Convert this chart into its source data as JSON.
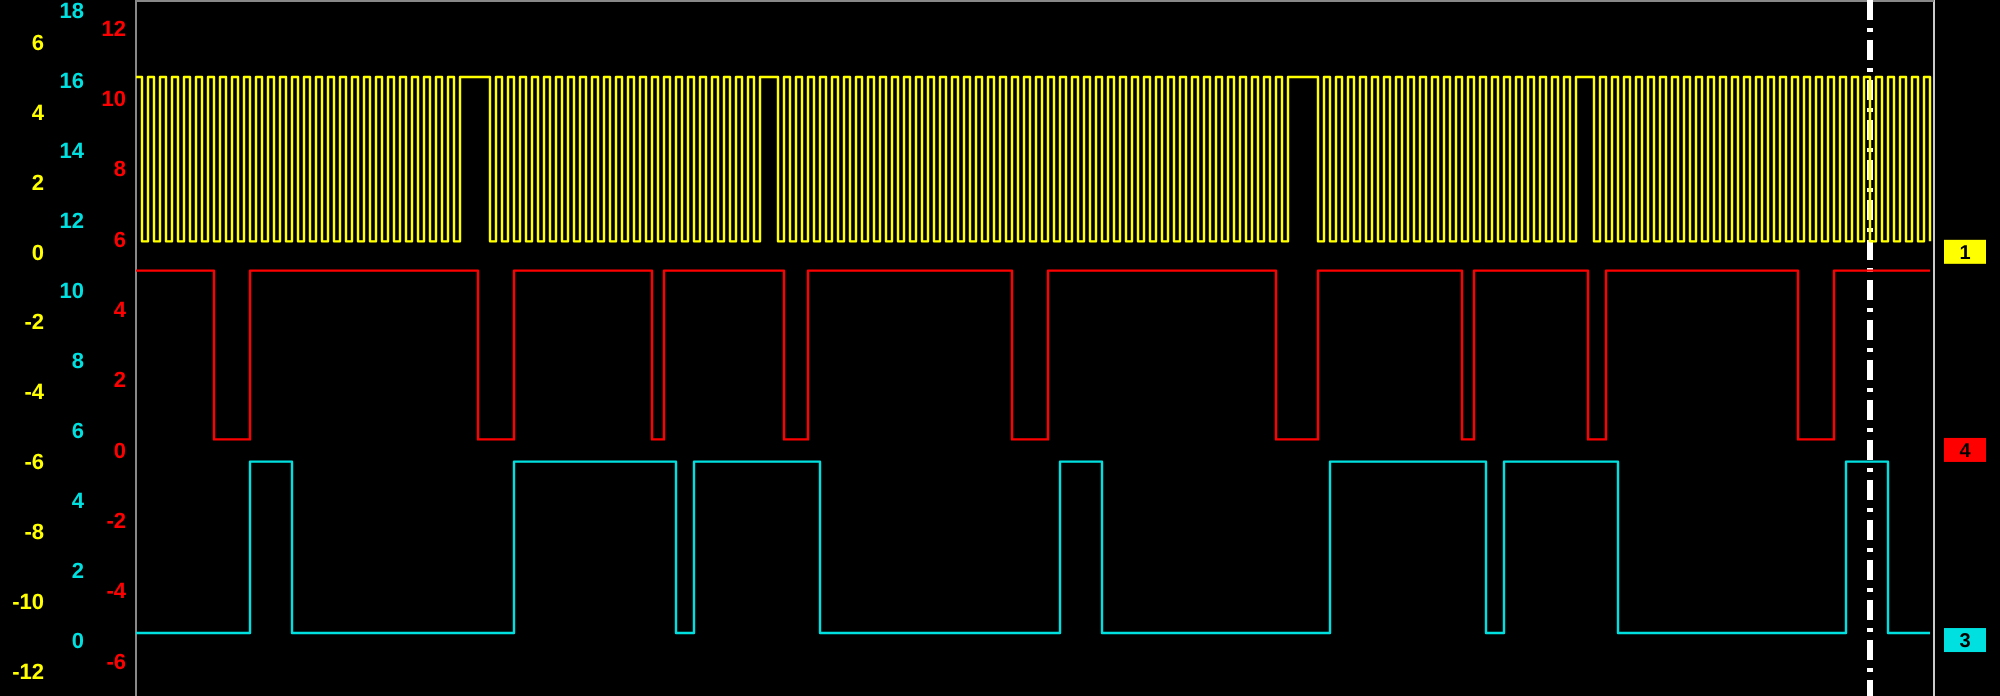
{
  "chart_data": {
    "type": "step",
    "legend": false,
    "grid": false,
    "tick_labels": "y",
    "categories": [
      null,
      null,
      null,
      null,
      null,
      null,
      null,
      null,
      null,
      null,
      null,
      null,
      null,
      null,
      null,
      null,
      null,
      null,
      null,
      null,
      null,
      null,
      null,
      null,
      null,
      null,
      null,
      null,
      null,
      null,
      null,
      null,
      null,
      null,
      null,
      null,
      null,
      null,
      null,
      null,
      null,
      null,
      null,
      null,
      null,
      null,
      null,
      null,
      null,
      null,
      null,
      null,
      null,
      null,
      null,
      null,
      null,
      null,
      null,
      null,
      null,
      null,
      null,
      null,
      null,
      null,
      null,
      null,
      null,
      null,
      null,
      null,
      null,
      null,
      null,
      null,
      null,
      null,
      null,
      null,
      null,
      null,
      null,
      null,
      null,
      null,
      null,
      null,
      null,
      null,
      null,
      null,
      null,
      null,
      null,
      null,
      null,
      null,
      null,
      null,
      null,
      null,
      null,
      null,
      null,
      null,
      null,
      null,
      null,
      null,
      null,
      null,
      null,
      null,
      null,
      null,
      null,
      null,
      null,
      null,
      null,
      null,
      null,
      null,
      null,
      null,
      null,
      null,
      null,
      null,
      null,
      null,
      null,
      null,
      null,
      null,
      null,
      null,
      null,
      null,
      null,
      null,
      null,
      null,
      null,
      null,
      null,
      null,
      null,
      null,
      null,
      null,
      null,
      null,
      null,
      null,
      null,
      null,
      null,
      null,
      null,
      null,
      null,
      null,
      null,
      null,
      null,
      null,
      null,
      null,
      null,
      null,
      null,
      null,
      null,
      null,
      null,
      null,
      null,
      null,
      null,
      null,
      null,
      null,
      null,
      null,
      null,
      null,
      null,
      null,
      null,
      null,
      null,
      null,
      null,
      null,
      null,
      null,
      null,
      null,
      null,
      null,
      null,
      null,
      null,
      null,
      null,
      null,
      null,
      null,
      null,
      null,
      null,
      null,
      null,
      null,
      null,
      null,
      null,
      null,
      null,
      null,
      null,
      null,
      null,
      null,
      null,
      null,
      null,
      null,
      null,
      null,
      null,
      null,
      null,
      null,
      null,
      null,
      null,
      null,
      null,
      null,
      null,
      null,
      null,
      null,
      null,
      null,
      null,
      null,
      null,
      null,
      null,
      null,
      null,
      null,
      null,
      null,
      null,
      null,
      null,
      null,
      null,
      null,
      null,
      null,
      null,
      null,
      null,
      null,
      null,
      null,
      null,
      null,
      null,
      null,
      null,
      null,
      null,
      null,
      null,
      null,
      null,
      null,
      null,
      null,
      null,
      null,
      null,
      null,
      null,
      null,
      null,
      null,
      null,
      null,
      null,
      null,
      null,
      null
    ],
    "ylim": [
      -12.7,
      7.2
    ],
    "yticks": [
      6,
      4,
      2,
      0,
      -2,
      -4,
      -6,
      -8,
      -10,
      -12
    ],
    "y2lim": [
      -1.6,
      18.3
    ],
    "y2ticks": [
      18,
      16,
      14,
      12,
      10,
      8,
      6,
      4,
      2,
      0
    ],
    "y3lim": [
      -7.0,
      12.8
    ],
    "y3ticks": [
      12,
      10,
      8,
      6,
      4,
      2,
      0,
      -2,
      -4,
      -6
    ],
    "series": [
      {
        "name": "1",
        "color": "#ffff00",
        "axis": "y",
        "values": [
          5,
          0.3,
          5,
          0.3,
          5,
          0.3,
          5,
          0.3,
          5,
          0.3,
          5,
          0.3,
          5,
          0.3,
          5,
          0.3,
          5,
          0.3,
          5,
          0.3,
          5,
          0.3,
          5,
          0.3,
          5,
          0.3,
          5,
          0.3,
          5,
          0.3,
          5,
          0.3,
          5,
          0.3,
          5,
          0.3,
          5,
          0.3,
          5,
          0.3,
          5,
          0.3,
          5,
          0.3,
          5,
          0.3,
          5,
          0.3,
          5,
          0.3,
          5,
          0.3,
          5,
          0.3,
          5,
          5,
          5,
          5,
          5,
          0.3,
          5,
          0.3,
          5,
          0.3,
          5,
          0.3,
          5,
          0.3,
          5,
          0.3,
          5,
          0.3,
          5,
          0.3,
          5,
          0.3,
          5,
          0.3,
          5,
          0.3,
          5,
          0.3,
          5,
          0.3,
          5,
          0.3,
          5,
          0.3,
          5,
          0.3,
          5,
          0.3,
          5,
          0.3,
          5,
          0.3,
          5,
          0.3,
          5,
          0.3,
          5,
          0.3,
          5,
          0.3,
          5,
          5,
          5,
          0.3,
          5,
          0.3,
          5,
          0.3,
          5,
          0.3,
          5,
          0.3,
          5,
          0.3,
          5,
          0.3,
          5,
          0.3,
          5,
          0.3,
          5,
          0.3,
          5,
          0.3,
          5,
          0.3,
          5,
          0.3,
          5,
          0.3,
          5,
          0.3,
          5,
          0.3,
          5,
          0.3,
          5,
          0.3,
          5,
          0.3,
          5,
          0.3,
          5,
          0.3,
          5,
          0.3,
          5,
          0.3,
          5,
          0.3,
          5,
          0.3,
          5,
          0.3,
          5,
          0.3,
          5,
          0.3,
          5,
          0.3,
          5,
          0.3,
          5,
          0.3,
          5,
          0.3,
          5,
          0.3,
          5,
          0.3,
          5,
          0.3,
          5,
          0.3,
          5,
          0.3,
          5,
          0.3,
          5,
          0.3,
          5,
          0.3,
          5,
          0.3,
          5,
          0.3,
          5,
          0.3,
          5,
          5,
          5,
          5,
          5,
          0.3,
          5,
          0.3,
          5,
          0.3,
          5,
          0.3,
          5,
          0.3,
          5,
          0.3,
          5,
          0.3,
          5,
          0.3,
          5,
          0.3,
          5,
          0.3,
          5,
          0.3,
          5,
          0.3,
          5,
          0.3,
          5,
          0.3,
          5,
          0.3,
          5,
          0.3,
          5,
          0.3,
          5,
          0.3,
          5,
          0.3,
          5,
          0.3,
          5,
          0.3,
          5,
          0.3,
          5,
          5,
          5,
          0.3,
          5,
          0.3,
          5,
          0.3,
          5,
          0.3,
          5,
          0.3,
          5,
          0.3,
          5,
          0.3,
          5,
          0.3,
          5,
          0.3,
          5,
          0.3,
          5,
          0.3,
          5,
          0.3,
          5,
          0.3,
          5,
          0.3,
          5,
          0.3,
          5,
          0.3,
          5,
          0.3,
          5,
          0.3,
          5,
          0.3,
          5,
          0.3,
          5,
          0.3,
          5,
          0.3,
          5,
          0.3,
          5,
          0.3,
          5,
          0.3,
          5,
          0.3,
          5,
          0.3,
          5,
          0.3,
          5,
          0.3
        ]
      },
      {
        "name": "4",
        "color": "#ff0000",
        "axis": "y3",
        "values": [
          5.1,
          5.1,
          5.1,
          5.1,
          5.1,
          5.1,
          5.1,
          5.1,
          5.1,
          5.1,
          5.1,
          5.1,
          5.1,
          0.3,
          0.3,
          0.3,
          0.3,
          0.3,
          0.3,
          5.1,
          5.1,
          5.1,
          5.1,
          5.1,
          5.1,
          5.1,
          5.1,
          5.1,
          5.1,
          5.1,
          5.1,
          5.1,
          5.1,
          5.1,
          5.1,
          5.1,
          5.1,
          5.1,
          5.1,
          5.1,
          5.1,
          5.1,
          5.1,
          5.1,
          5.1,
          5.1,
          5.1,
          5.1,
          5.1,
          5.1,
          5.1,
          5.1,
          5.1,
          5.1,
          5.1,
          5.1,
          5.1,
          0.3,
          0.3,
          0.3,
          0.3,
          0.3,
          0.3,
          5.1,
          5.1,
          5.1,
          5.1,
          5.1,
          5.1,
          5.1,
          5.1,
          5.1,
          5.1,
          5.1,
          5.1,
          5.1,
          5.1,
          5.1,
          5.1,
          5.1,
          5.1,
          5.1,
          5.1,
          5.1,
          5.1,
          5.1,
          0.3,
          0.3,
          5.1,
          5.1,
          5.1,
          5.1,
          5.1,
          5.1,
          5.1,
          5.1,
          5.1,
          5.1,
          5.1,
          5.1,
          5.1,
          5.1,
          5.1,
          5.1,
          5.1,
          5.1,
          5.1,
          5.1,
          0.3,
          0.3,
          0.3,
          0.3,
          5.1,
          5.1,
          5.1,
          5.1,
          5.1,
          5.1,
          5.1,
          5.1,
          5.1,
          5.1,
          5.1,
          5.1,
          5.1,
          5.1,
          5.1,
          5.1,
          5.1,
          5.1,
          5.1,
          5.1,
          5.1,
          5.1,
          5.1,
          5.1,
          5.1,
          5.1,
          5.1,
          5.1,
          5.1,
          5.1,
          5.1,
          5.1,
          5.1,
          5.1,
          0.3,
          0.3,
          0.3,
          0.3,
          0.3,
          0.3,
          5.1,
          5.1,
          5.1,
          5.1,
          5.1,
          5.1,
          5.1,
          5.1,
          5.1,
          5.1,
          5.1,
          5.1,
          5.1,
          5.1,
          5.1,
          5.1,
          5.1,
          5.1,
          5.1,
          5.1,
          5.1,
          5.1,
          5.1,
          5.1,
          5.1,
          5.1,
          5.1,
          5.1,
          5.1,
          5.1,
          5.1,
          5.1,
          5.1,
          5.1,
          5.1,
          5.1,
          5.1,
          5.1,
          0.3,
          0.3,
          0.3,
          0.3,
          0.3,
          0.3,
          0.3,
          5.1,
          5.1,
          5.1,
          5.1,
          5.1,
          5.1,
          5.1,
          5.1,
          5.1,
          5.1,
          5.1,
          5.1,
          5.1,
          5.1,
          5.1,
          5.1,
          5.1,
          5.1,
          5.1,
          5.1,
          5.1,
          5.1,
          5.1,
          5.1,
          0.3,
          0.3,
          5.1,
          5.1,
          5.1,
          5.1,
          5.1,
          5.1,
          5.1,
          5.1,
          5.1,
          5.1,
          5.1,
          5.1,
          5.1,
          5.1,
          5.1,
          5.1,
          5.1,
          5.1,
          5.1,
          0.3,
          0.3,
          0.3,
          5.1,
          5.1,
          5.1,
          5.1,
          5.1,
          5.1,
          5.1,
          5.1,
          5.1,
          5.1,
          5.1,
          5.1,
          5.1,
          5.1,
          5.1,
          5.1,
          5.1,
          5.1,
          5.1,
          5.1,
          5.1,
          5.1,
          5.1,
          5.1,
          5.1,
          5.1,
          5.1,
          5.1,
          5.1,
          5.1,
          5.1,
          5.1,
          0.3,
          0.3,
          0.3,
          0.3,
          0.3,
          0.3,
          5.1,
          5.1,
          5.1,
          5.1,
          5.1,
          5.1,
          5.1,
          5.1,
          5.1,
          5.1,
          5.1,
          5.1,
          5.1,
          5.1,
          5.1,
          5.1,
          5.1
        ]
      },
      {
        "name": "3",
        "color": "#00e0e0",
        "axis": "y2",
        "values": [
          0.2,
          0.2,
          0.2,
          0.2,
          0.2,
          0.2,
          0.2,
          0.2,
          0.2,
          0.2,
          0.2,
          0.2,
          0.2,
          0.2,
          0.2,
          0.2,
          0.2,
          0.2,
          0.2,
          5.1,
          5.1,
          5.1,
          5.1,
          5.1,
          5.1,
          5.1,
          0.2,
          0.2,
          0.2,
          0.2,
          0.2,
          0.2,
          0.2,
          0.2,
          0.2,
          0.2,
          0.2,
          0.2,
          0.2,
          0.2,
          0.2,
          0.2,
          0.2,
          0.2,
          0.2,
          0.2,
          0.2,
          0.2,
          0.2,
          0.2,
          0.2,
          0.2,
          0.2,
          0.2,
          0.2,
          0.2,
          0.2,
          0.2,
          0.2,
          0.2,
          0.2,
          0.2,
          0.2,
          5.1,
          5.1,
          5.1,
          5.1,
          5.1,
          5.1,
          5.1,
          5.1,
          5.1,
          5.1,
          5.1,
          5.1,
          5.1,
          5.1,
          5.1,
          5.1,
          5.1,
          5.1,
          5.1,
          5.1,
          5.1,
          5.1,
          5.1,
          5.1,
          5.1,
          5.1,
          5.1,
          0.2,
          0.2,
          0.2,
          5.1,
          5.1,
          5.1,
          5.1,
          5.1,
          5.1,
          5.1,
          5.1,
          5.1,
          5.1,
          5.1,
          5.1,
          5.1,
          5.1,
          5.1,
          5.1,
          5.1,
          5.1,
          5.1,
          5.1,
          5.1,
          0.2,
          0.2,
          0.2,
          0.2,
          0.2,
          0.2,
          0.2,
          0.2,
          0.2,
          0.2,
          0.2,
          0.2,
          0.2,
          0.2,
          0.2,
          0.2,
          0.2,
          0.2,
          0.2,
          0.2,
          0.2,
          0.2,
          0.2,
          0.2,
          0.2,
          0.2,
          0.2,
          0.2,
          0.2,
          0.2,
          0.2,
          0.2,
          0.2,
          0.2,
          0.2,
          0.2,
          0.2,
          0.2,
          0.2,
          0.2,
          5.1,
          5.1,
          5.1,
          5.1,
          5.1,
          5.1,
          5.1,
          0.2,
          0.2,
          0.2,
          0.2,
          0.2,
          0.2,
          0.2,
          0.2,
          0.2,
          0.2,
          0.2,
          0.2,
          0.2,
          0.2,
          0.2,
          0.2,
          0.2,
          0.2,
          0.2,
          0.2,
          0.2,
          0.2,
          0.2,
          0.2,
          0.2,
          0.2,
          0.2,
          0.2,
          0.2,
          0.2,
          0.2,
          0.2,
          0.2,
          0.2,
          0.2,
          0.2,
          0.2,
          0.2,
          5.1,
          5.1,
          5.1,
          5.1,
          5.1,
          5.1,
          5.1,
          5.1,
          5.1,
          5.1,
          5.1,
          5.1,
          5.1,
          5.1,
          5.1,
          5.1,
          5.1,
          5.1,
          5.1,
          5.1,
          5.1,
          5.1,
          5.1,
          5.1,
          5.1,
          5.1,
          0.2,
          0.2,
          0.2,
          5.1,
          5.1,
          5.1,
          5.1,
          5.1,
          5.1,
          5.1,
          5.1,
          5.1,
          5.1,
          5.1,
          5.1,
          5.1,
          5.1,
          5.1,
          5.1,
          5.1,
          5.1,
          5.1,
          0.2,
          0.2,
          0.2,
          0.2,
          0.2,
          0.2,
          0.2,
          0.2,
          0.2,
          0.2,
          0.2,
          0.2,
          0.2,
          0.2,
          0.2,
          0.2,
          0.2,
          0.2,
          0.2,
          0.2,
          0.2,
          0.2,
          0.2,
          0.2,
          0.2,
          0.2,
          0.2,
          0.2,
          0.2,
          0.2,
          0.2,
          0.2,
          0.2,
          0.2,
          0.2,
          0.2,
          0.2,
          0.2,
          5.1,
          5.1,
          5.1,
          5.1,
          5.1,
          5.1,
          5.1,
          0.2,
          0.2,
          0.2,
          0.2,
          0.2,
          0.2,
          0.2,
          0.2
        ]
      }
    ]
  }
}
